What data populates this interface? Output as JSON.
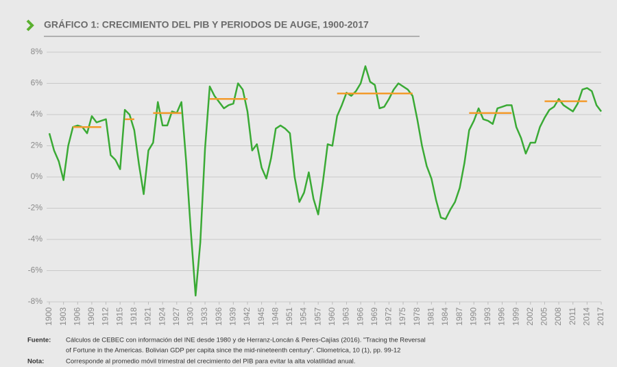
{
  "chart_data": {
    "type": "line",
    "title": "GRÁFICO 1: CRECIMIENTO DEL PIB Y PERIODOS DE AUGE, 1900-2017",
    "x": [
      1900,
      1901,
      1902,
      1903,
      1904,
      1905,
      1906,
      1907,
      1908,
      1909,
      1910,
      1911,
      1912,
      1913,
      1914,
      1915,
      1916,
      1917,
      1918,
      1919,
      1920,
      1921,
      1922,
      1923,
      1924,
      1925,
      1926,
      1927,
      1928,
      1929,
      1930,
      1931,
      1932,
      1933,
      1934,
      1935,
      1936,
      1937,
      1938,
      1939,
      1940,
      1941,
      1942,
      1943,
      1944,
      1945,
      1946,
      1947,
      1948,
      1949,
      1950,
      1951,
      1952,
      1953,
      1954,
      1955,
      1956,
      1957,
      1958,
      1959,
      1960,
      1961,
      1962,
      1963,
      1964,
      1965,
      1966,
      1967,
      1968,
      1969,
      1970,
      1971,
      1972,
      1973,
      1974,
      1975,
      1976,
      1977,
      1978,
      1979,
      1980,
      1981,
      1982,
      1983,
      1984,
      1985,
      1986,
      1987,
      1988,
      1989,
      1990,
      1991,
      1992,
      1993,
      1994,
      1995,
      1996,
      1997,
      1998,
      1999,
      2000,
      2001,
      2002,
      2003,
      2004,
      2005,
      2006,
      2007,
      2008,
      2009,
      2010,
      2011,
      2012,
      2013,
      2014,
      2015,
      2016,
      2017
    ],
    "series": [
      {
        "color": "#3aaa35",
        "values": [
          2.8,
          1.7,
          1.0,
          -0.2,
          2.0,
          3.2,
          3.3,
          3.2,
          2.8,
          3.9,
          3.5,
          3.6,
          3.7,
          1.4,
          1.1,
          0.5,
          4.3,
          4.0,
          3.0,
          0.8,
          -1.1,
          1.7,
          2.2,
          4.8,
          3.3,
          3.3,
          4.2,
          4.1,
          4.8,
          1.0,
          -3.5,
          -7.6,
          -4.2,
          1.8,
          5.8,
          5.2,
          4.8,
          4.4,
          4.6,
          4.7,
          6.0,
          5.6,
          4.2,
          1.7,
          2.1,
          0.6,
          -0.1,
          1.2,
          3.1,
          3.3,
          3.1,
          2.8,
          0.0,
          -1.6,
          -1.0,
          0.3,
          -1.4,
          -2.4,
          -0.3,
          2.1,
          2.0,
          3.9,
          4.6,
          5.4,
          5.2,
          5.5,
          6.0,
          7.1,
          6.1,
          5.9,
          4.4,
          4.5,
          5.0,
          5.6,
          6.0,
          5.8,
          5.6,
          5.2,
          3.7,
          2.0,
          0.7,
          -0.1,
          -1.5,
          -2.6,
          -2.7,
          -2.1,
          -1.6,
          -0.7,
          0.9,
          3.0,
          3.6,
          4.4,
          3.7,
          3.6,
          3.4,
          4.4,
          4.5,
          4.6,
          4.6,
          3.2,
          2.5,
          1.5,
          2.2,
          2.2,
          3.2,
          3.8,
          4.3,
          4.5,
          5.0,
          4.6,
          4.4,
          4.2,
          4.7,
          5.6,
          5.7,
          5.5,
          4.6,
          4.2
        ]
      }
    ],
    "booms": {
      "color": "#f39a2b",
      "periods": [
        {
          "start": 1905,
          "end": 1911,
          "value": 3.2
        },
        {
          "start": 1916,
          "end": 1918,
          "value": 3.7
        },
        {
          "start": 1922,
          "end": 1928,
          "value": 4.1
        },
        {
          "start": 1934,
          "end": 1942,
          "value": 5.0
        },
        {
          "start": 1961,
          "end": 1977,
          "value": 5.35
        },
        {
          "start": 1989,
          "end": 1998,
          "value": 4.1
        },
        {
          "start": 2005,
          "end": 2014,
          "value": 4.85
        }
      ]
    },
    "xlim": [
      1900,
      2017
    ],
    "xticks": [
      1900,
      1903,
      1906,
      1909,
      1912,
      1915,
      1918,
      1921,
      1924,
      1927,
      1930,
      1933,
      1936,
      1939,
      1942,
      1945,
      1948,
      1951,
      1954,
      1957,
      1960,
      1963,
      1966,
      1969,
      1972,
      1975,
      1978,
      1981,
      1984,
      1987,
      1990,
      1993,
      1996,
      1999,
      2002,
      2005,
      2008,
      2011,
      2014,
      2017
    ],
    "ylim": [
      -8,
      8
    ],
    "yticks": [
      {
        "value": 8,
        "label": "8%"
      },
      {
        "value": 6,
        "label": "6%"
      },
      {
        "value": 4,
        "label": "4%"
      },
      {
        "value": 2,
        "label": "2%"
      },
      {
        "value": 0,
        "label": "0%"
      },
      {
        "value": -2,
        "label": "-2%"
      },
      {
        "value": -4,
        "label": "-4%"
      },
      {
        "value": -6,
        "label": "-6%"
      },
      {
        "value": -8,
        "label": "-8%"
      }
    ],
    "grid": true,
    "notes": {
      "source_label": "Fuente:",
      "source": [
        "Cálculos de CEBEC con información del INE desde 1980 y de Herranz-Loncán & Peres-Cajías (2016). \"Tracing the Reversal",
        "of Fortune in the Americas. Bolivian GDP per capita since the mid-nineteenth century\". Cliometrica, 10 (1), pp. 99-12"
      ],
      "note_label": "Nota:",
      "note": "Corresponde al promedio móvil trimestral del crecimiento del PIB para evitar la alta volatilidad anual."
    }
  }
}
